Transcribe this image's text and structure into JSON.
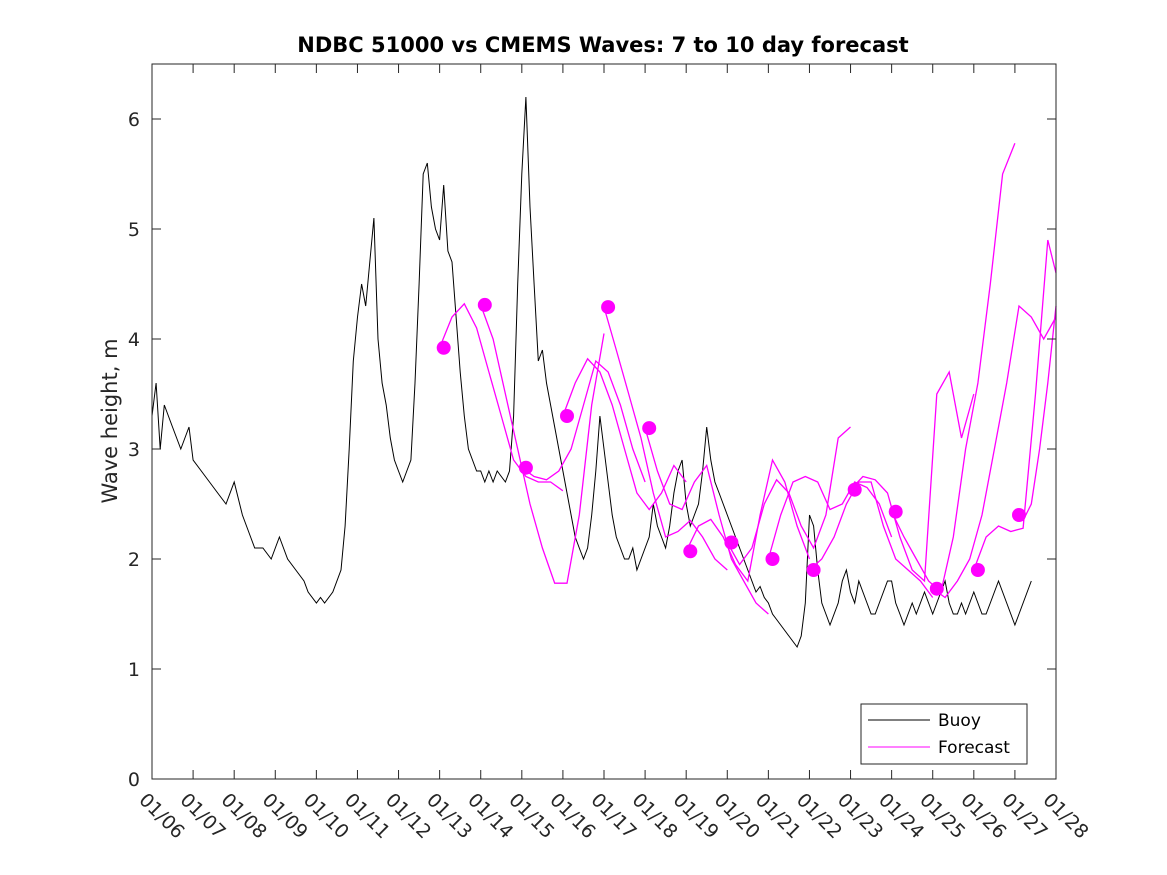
{
  "chart_data": {
    "type": "line",
    "title": "NDBC 51000 vs CMEMS Waves: 7 to 10 day forecast",
    "xlabel": "",
    "ylabel": "Wave height, m",
    "x_units": "days since 01/06",
    "xlim": [
      0,
      22
    ],
    "ylim": [
      0,
      6.5
    ],
    "x_ticks": [
      0,
      1,
      2,
      3,
      4,
      5,
      6,
      7,
      8,
      9,
      10,
      11,
      12,
      13,
      14,
      15,
      16,
      17,
      18,
      19,
      20,
      21,
      22
    ],
    "x_tick_labels": [
      "01/06",
      "01/07",
      "01/08",
      "01/09",
      "01/10",
      "01/11",
      "01/12",
      "01/13",
      "01/14",
      "01/15",
      "01/16",
      "01/17",
      "01/18",
      "01/19",
      "01/20",
      "01/21",
      "01/22",
      "01/23",
      "01/24",
      "01/25",
      "01/26",
      "01/27",
      "01/28"
    ],
    "y_ticks": [
      0,
      1,
      2,
      3,
      4,
      5,
      6
    ],
    "y_tick_labels": [
      "0",
      "1",
      "2",
      "3",
      "4",
      "5",
      "6"
    ],
    "legend": {
      "position": "bottom-right",
      "entries": [
        "Buoy",
        "Forecast"
      ]
    },
    "colors": {
      "buoy": "#000000",
      "forecast": "#ff00ff",
      "axis": "#262626"
    },
    "series": [
      {
        "name": "Buoy",
        "x": [
          0,
          0.1,
          0.2,
          0.3,
          0.5,
          0.7,
          0.9,
          1.0,
          1.2,
          1.4,
          1.6,
          1.8,
          2.0,
          2.2,
          2.4,
          2.5,
          2.7,
          2.9,
          3.1,
          3.3,
          3.5,
          3.7,
          3.8,
          4.0,
          4.1,
          4.2,
          4.4,
          4.6,
          4.7,
          4.8,
          4.9,
          5.0,
          5.1,
          5.2,
          5.3,
          5.4,
          5.5,
          5.6,
          5.7,
          5.8,
          5.9,
          6.0,
          6.1,
          6.2,
          6.3,
          6.4,
          6.5,
          6.6,
          6.7,
          6.8,
          6.9,
          7.0,
          7.1,
          7.2,
          7.3,
          7.4,
          7.5,
          7.6,
          7.7,
          7.8,
          7.9,
          8.0,
          8.1,
          8.2,
          8.3,
          8.4,
          8.5,
          8.6,
          8.7,
          8.8,
          8.9,
          9.0,
          9.1,
          9.2,
          9.3,
          9.4,
          9.5,
          9.6,
          9.7,
          9.8,
          9.9,
          10.0,
          10.1,
          10.2,
          10.3,
          10.4,
          10.5,
          10.6,
          10.7,
          10.8,
          10.9,
          11.0,
          11.1,
          11.2,
          11.3,
          11.4,
          11.5,
          11.6,
          11.7,
          11.8,
          11.9,
          12.0,
          12.1,
          12.2,
          12.3,
          12.4,
          12.5,
          12.6,
          12.7,
          12.8,
          12.9,
          13.0,
          13.1,
          13.2,
          13.3,
          13.4,
          13.5,
          13.6,
          13.7,
          13.8,
          13.9,
          14.0,
          14.1,
          14.2,
          14.3,
          14.4,
          14.5,
          14.6,
          14.7,
          14.8,
          14.9,
          15.0,
          15.1,
          15.2,
          15.3,
          15.4,
          15.5,
          15.6,
          15.7,
          15.8,
          15.9,
          16.0,
          16.1,
          16.2,
          16.3,
          16.4,
          16.5,
          16.6,
          16.7,
          16.8,
          16.9,
          17.0,
          17.1,
          17.2,
          17.3,
          17.4,
          17.5,
          17.6,
          17.7,
          17.8,
          17.9,
          18.0,
          18.1,
          18.2,
          18.3,
          18.4,
          18.5,
          18.6,
          18.7,
          18.8,
          18.9,
          19.0,
          19.1,
          19.2,
          19.3,
          19.4,
          19.5,
          19.6,
          19.7,
          19.8,
          19.9,
          20.0,
          20.1,
          20.2,
          20.3,
          20.4,
          20.5,
          20.6,
          20.7,
          20.8,
          20.9,
          21.0,
          21.1,
          21.2,
          21.4
        ],
        "values": [
          3.3,
          3.6,
          3.0,
          3.4,
          3.2,
          3.0,
          3.2,
          2.9,
          2.8,
          2.7,
          2.6,
          2.5,
          2.7,
          2.4,
          2.2,
          2.1,
          2.1,
          2.0,
          2.2,
          2.0,
          1.9,
          1.8,
          1.7,
          1.6,
          1.65,
          1.6,
          1.7,
          1.9,
          2.3,
          3.0,
          3.8,
          4.2,
          4.5,
          4.3,
          4.7,
          5.1,
          4.0,
          3.6,
          3.4,
          3.1,
          2.9,
          2.8,
          2.7,
          2.8,
          2.9,
          3.6,
          4.5,
          5.5,
          5.6,
          5.2,
          5.0,
          4.9,
          5.4,
          4.8,
          4.7,
          4.2,
          3.7,
          3.3,
          3.0,
          2.9,
          2.8,
          2.8,
          2.7,
          2.8,
          2.7,
          2.8,
          2.75,
          2.7,
          2.8,
          3.3,
          4.5,
          5.5,
          6.2,
          5.2,
          4.5,
          3.8,
          3.9,
          3.6,
          3.4,
          3.2,
          3.0,
          2.8,
          2.6,
          2.4,
          2.2,
          2.1,
          2.0,
          2.1,
          2.4,
          2.8,
          3.3,
          3.0,
          2.7,
          2.4,
          2.2,
          2.1,
          2.0,
          2.0,
          2.1,
          1.9,
          2.0,
          2.1,
          2.2,
          2.5,
          2.3,
          2.2,
          2.1,
          2.3,
          2.6,
          2.8,
          2.9,
          2.5,
          2.3,
          2.4,
          2.5,
          2.8,
          3.2,
          2.9,
          2.7,
          2.6,
          2.5,
          2.4,
          2.3,
          2.2,
          2.1,
          2.0,
          1.9,
          1.8,
          1.7,
          1.75,
          1.65,
          1.6,
          1.5,
          1.45,
          1.4,
          1.35,
          1.3,
          1.25,
          1.2,
          1.3,
          1.6,
          2.4,
          2.3,
          1.9,
          1.6,
          1.5,
          1.4,
          1.5,
          1.6,
          1.8,
          1.9,
          1.7,
          1.6,
          1.8,
          1.7,
          1.6,
          1.5,
          1.5,
          1.6,
          1.7,
          1.8,
          1.8,
          1.6,
          1.5,
          1.4,
          1.5,
          1.6,
          1.5,
          1.6,
          1.7,
          1.6,
          1.5,
          1.6,
          1.7,
          1.8,
          1.6,
          1.5,
          1.5,
          1.6,
          1.5,
          1.6,
          1.7,
          1.6,
          1.5,
          1.5,
          1.6,
          1.7,
          1.8,
          1.7,
          1.6,
          1.5,
          1.4,
          1.5,
          1.6,
          1.8
        ]
      },
      {
        "name": "Forecast",
        "runs": [
          {
            "x": [
              7.0,
              7.3,
              7.6,
              7.9,
              8.2,
              8.5,
              8.8,
              9.1,
              9.4,
              9.7,
              10.0
            ],
            "values": [
              3.92,
              4.2,
              4.32,
              4.1,
              3.7,
              3.3,
              2.9,
              2.75,
              2.7,
              2.7,
              2.62
            ]
          },
          {
            "x": [
              8.0,
              8.3,
              8.6,
              8.9,
              9.2,
              9.5,
              9.8,
              10.1,
              10.4,
              10.7,
              11.0
            ],
            "values": [
              4.31,
              4.0,
              3.5,
              3.0,
              2.5,
              2.1,
              1.78,
              1.78,
              2.4,
              3.4,
              4.05
            ]
          },
          {
            "x": [
              9.0,
              9.3,
              9.6,
              9.9,
              10.2,
              10.5,
              10.8,
              11.1,
              11.4,
              11.7,
              12.0
            ],
            "values": [
              2.83,
              2.75,
              2.72,
              2.8,
              3.0,
              3.4,
              3.8,
              3.7,
              3.4,
              3.0,
              2.7
            ]
          },
          {
            "x": [
              10.0,
              10.3,
              10.6,
              10.9,
              11.2,
              11.5,
              11.8,
              12.1,
              12.4,
              12.7,
              13.0
            ],
            "values": [
              3.3,
              3.6,
              3.82,
              3.7,
              3.4,
              3.0,
              2.6,
              2.45,
              2.6,
              2.85,
              2.7
            ]
          },
          {
            "x": [
              11.0,
              11.3,
              11.6,
              11.9,
              12.2,
              12.5,
              12.8,
              13.1,
              13.4,
              13.7,
              14.0
            ],
            "values": [
              4.29,
              3.9,
              3.5,
              3.1,
              2.6,
              2.2,
              2.25,
              2.35,
              2.2,
              2.0,
              1.9
            ]
          },
          {
            "x": [
              12.0,
              12.3,
              12.6,
              12.9,
              13.2,
              13.5,
              13.8,
              14.1,
              14.4,
              14.7,
              15.0
            ],
            "values": [
              3.19,
              2.8,
              2.5,
              2.45,
              2.7,
              2.85,
              2.4,
              2.0,
              1.8,
              1.6,
              1.5
            ]
          },
          {
            "x": [
              13.0,
              13.3,
              13.6,
              13.9,
              14.2,
              14.5,
              14.8,
              15.1,
              15.4,
              15.7,
              16.0
            ],
            "values": [
              2.07,
              2.3,
              2.36,
              2.2,
              1.95,
              1.8,
              2.4,
              2.9,
              2.7,
              2.3,
              2.0
            ]
          },
          {
            "x": [
              14.0,
              14.3,
              14.6,
              14.9,
              15.2,
              15.5,
              15.8,
              16.1,
              16.4,
              16.7,
              17.0
            ],
            "values": [
              2.15,
              1.95,
              2.1,
              2.5,
              2.72,
              2.6,
              2.3,
              2.1,
              2.4,
              3.1,
              3.2
            ]
          },
          {
            "x": [
              15.0,
              15.3,
              15.6,
              15.9,
              16.2,
              16.5,
              16.8,
              17.1,
              17.4,
              17.7,
              18.0
            ],
            "values": [
              2.0,
              2.4,
              2.7,
              2.75,
              2.7,
              2.45,
              2.5,
              2.7,
              2.65,
              2.5,
              2.2
            ]
          },
          {
            "x": [
              16.0,
              16.3,
              16.6,
              16.9,
              17.2,
              17.5,
              17.8,
              18.1,
              18.4,
              18.7,
              19.0
            ],
            "values": [
              1.9,
              2.0,
              2.2,
              2.5,
              2.7,
              2.7,
              2.3,
              2.0,
              1.9,
              1.8,
              1.65
            ]
          },
          {
            "x": [
              17.0,
              17.3,
              17.6,
              17.9,
              18.2,
              18.5,
              18.8,
              19.1,
              19.4,
              19.7,
              20.0
            ],
            "values": [
              2.63,
              2.75,
              2.72,
              2.6,
              2.2,
              1.9,
              1.8,
              3.5,
              3.7,
              3.1,
              3.5
            ]
          },
          {
            "x": [
              18.0,
              18.3,
              18.6,
              18.9,
              19.2,
              19.5,
              19.8,
              20.1,
              20.4,
              20.7,
              21.0
            ],
            "values": [
              2.43,
              2.2,
              2.0,
              1.8,
              1.7,
              2.2,
              3.0,
              3.6,
              4.5,
              5.5,
              5.78
            ]
          },
          {
            "x": [
              19.0,
              19.3,
              19.6,
              19.9,
              20.2,
              20.5,
              20.8,
              21.1,
              21.4,
              21.7,
              22.0
            ],
            "values": [
              1.73,
              1.65,
              1.8,
              2.0,
              2.4,
              3.0,
              3.6,
              4.3,
              4.2,
              4.0,
              4.2
            ]
          },
          {
            "x": [
              20.0,
              20.3,
              20.6,
              20.9,
              21.2,
              21.5,
              21.8,
              22.0
            ],
            "values": [
              1.9,
              2.2,
              2.3,
              2.25,
              2.28,
              3.5,
              4.9,
              4.6
            ]
          },
          {
            "x": [
              21.0,
              21.2,
              21.4,
              21.6,
              21.8,
              22.0
            ],
            "values": [
              2.4,
              2.35,
              2.5,
              3.0,
              3.6,
              4.3
            ]
          }
        ],
        "markers": {
          "x": [
            7.1,
            8.1,
            9.1,
            10.1,
            11.1,
            12.1,
            13.1,
            14.1,
            15.1,
            16.1,
            17.1,
            18.1,
            19.1,
            20.1,
            21.1
          ],
          "values": [
            3.92,
            4.31,
            2.83,
            3.3,
            4.29,
            3.19,
            2.07,
            2.15,
            2.0,
            1.9,
            2.63,
            2.43,
            1.73,
            1.9,
            2.4
          ]
        }
      }
    ]
  }
}
